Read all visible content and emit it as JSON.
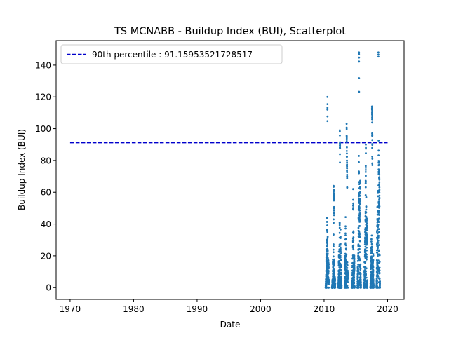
{
  "chart_data": {
    "type": "scatter",
    "title": "TS MCNABB - Buildup Index (BUI), Scatterplot",
    "xlabel": "Date",
    "ylabel": "Buildup Index (BUI)",
    "x_scale": "date-year",
    "xlim": [
      1967.8,
      2022.6
    ],
    "ylim": [
      -7.4,
      155.4
    ],
    "x_ticks": [
      1970,
      1980,
      1990,
      2000,
      2010,
      2020
    ],
    "y_ticks": [
      0,
      20,
      40,
      60,
      80,
      100,
      120,
      140
    ],
    "grid": false,
    "legend_position": "upper-left",
    "reference_line": {
      "label": "90th percentile : 91.15953521728517",
      "y": 91.15953521728517,
      "x_range": [
        1970,
        2020
      ],
      "style": "dashed",
      "color": "#0000cc"
    },
    "series": [
      {
        "color": "#1f77b4",
        "marker": "dot",
        "seasons": [
          {
            "start": 2010.25,
            "end": 2010.75,
            "peak": 120,
            "peak_at": 0.55
          },
          {
            "start": 2011.25,
            "end": 2011.75,
            "peak": 64,
            "peak_at": 0.5
          },
          {
            "start": 2012.25,
            "end": 2012.75,
            "peak": 99,
            "peak_at": 0.45
          },
          {
            "start": 2013.25,
            "end": 2013.75,
            "peak": 103,
            "peak_at": 0.6
          },
          {
            "start": 2014.35,
            "end": 2014.8,
            "peak": 62,
            "peak_at": 0.5
          },
          {
            "start": 2015.25,
            "end": 2015.8,
            "peak": 148,
            "peak_at": 0.45
          },
          {
            "start": 2016.3,
            "end": 2016.8,
            "peak": 90,
            "peak_at": 0.55
          },
          {
            "start": 2017.3,
            "end": 2017.8,
            "peak": 114,
            "peak_at": 0.5
          },
          {
            "start": 2018.25,
            "end": 2018.8,
            "peak": 148,
            "peak_at": 0.55
          }
        ]
      }
    ]
  }
}
